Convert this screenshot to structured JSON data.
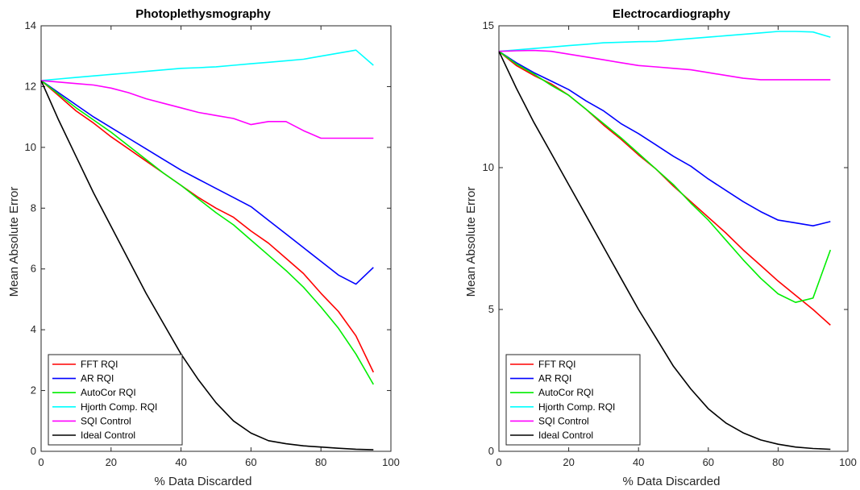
{
  "chart_data": [
    {
      "type": "line",
      "title": "Photoplethysmography",
      "xlabel": "% Data Discarded",
      "ylabel": "Mean Absolute Error",
      "xlim": [
        0,
        100
      ],
      "ylim": [
        0,
        14
      ],
      "xticks": [
        0,
        20,
        40,
        60,
        80,
        100
      ],
      "yticks": [
        0,
        2,
        4,
        6,
        8,
        10,
        12,
        14
      ],
      "legend_position": "bottom-left",
      "grid": false,
      "series": [
        {
          "name": "FFT RQI",
          "color": "#ff0000",
          "x": [
            0,
            5,
            10,
            15,
            20,
            25,
            30,
            35,
            40,
            45,
            50,
            55,
            60,
            65,
            70,
            75,
            80,
            85,
            90,
            95
          ],
          "y": [
            12.2,
            11.7,
            11.2,
            10.8,
            10.35,
            9.95,
            9.55,
            9.15,
            8.75,
            8.35,
            8.0,
            7.7,
            7.25,
            6.85,
            6.35,
            5.85,
            5.2,
            4.6,
            3.8,
            2.6
          ]
        },
        {
          "name": "AR RQI",
          "color": "#0000ff",
          "x": [
            0,
            5,
            10,
            15,
            20,
            25,
            30,
            35,
            40,
            45,
            50,
            55,
            60,
            65,
            70,
            75,
            80,
            85,
            90,
            95
          ],
          "y": [
            12.2,
            11.8,
            11.4,
            11.0,
            10.65,
            10.3,
            9.95,
            9.6,
            9.25,
            8.95,
            8.65,
            8.35,
            8.05,
            7.6,
            7.15,
            6.7,
            6.25,
            5.8,
            5.5,
            6.05
          ]
        },
        {
          "name": "AutoCor RQI",
          "color": "#00ee00",
          "x": [
            0,
            5,
            10,
            15,
            20,
            25,
            30,
            35,
            40,
            45,
            50,
            55,
            60,
            65,
            70,
            75,
            80,
            85,
            90,
            95
          ],
          "y": [
            12.2,
            11.75,
            11.3,
            10.9,
            10.5,
            10.05,
            9.6,
            9.15,
            8.75,
            8.3,
            7.85,
            7.45,
            6.95,
            6.45,
            5.95,
            5.4,
            4.75,
            4.05,
            3.2,
            2.2
          ]
        },
        {
          "name": "Hjorth Comp. RQI",
          "color": "#00ffff",
          "x": [
            0,
            5,
            10,
            15,
            20,
            25,
            30,
            35,
            40,
            45,
            50,
            55,
            60,
            65,
            70,
            75,
            80,
            85,
            90,
            95
          ],
          "y": [
            12.2,
            12.25,
            12.3,
            12.35,
            12.4,
            12.45,
            12.5,
            12.55,
            12.6,
            12.62,
            12.65,
            12.7,
            12.75,
            12.8,
            12.85,
            12.9,
            13.0,
            13.1,
            13.2,
            12.7
          ]
        },
        {
          "name": "SQI Control",
          "color": "#ff00ff",
          "x": [
            0,
            5,
            10,
            15,
            20,
            25,
            30,
            35,
            40,
            45,
            50,
            55,
            60,
            65,
            70,
            75,
            80,
            85,
            90,
            95
          ],
          "y": [
            12.2,
            12.15,
            12.1,
            12.05,
            11.95,
            11.8,
            11.6,
            11.45,
            11.3,
            11.15,
            11.05,
            10.95,
            10.75,
            10.85,
            10.85,
            10.55,
            10.3,
            10.3,
            10.3,
            10.3
          ]
        },
        {
          "name": "Ideal Control",
          "color": "#000000",
          "x": [
            0,
            5,
            10,
            15,
            20,
            25,
            30,
            35,
            40,
            45,
            50,
            55,
            60,
            65,
            70,
            75,
            80,
            85,
            90,
            95
          ],
          "y": [
            12.2,
            10.9,
            9.7,
            8.5,
            7.4,
            6.3,
            5.2,
            4.2,
            3.2,
            2.35,
            1.6,
            1.0,
            0.6,
            0.35,
            0.25,
            0.18,
            0.14,
            0.1,
            0.07,
            0.05
          ]
        }
      ]
    },
    {
      "type": "line",
      "title": "Electrocardiography",
      "xlabel": "% Data Discarded",
      "ylabel": "Mean Absolute Error",
      "xlim": [
        0,
        100
      ],
      "ylim": [
        0,
        15
      ],
      "xticks": [
        0,
        20,
        40,
        60,
        80,
        100
      ],
      "yticks": [
        0,
        5,
        10,
        15
      ],
      "legend_position": "bottom-left",
      "grid": false,
      "series": [
        {
          "name": "FFT RQI",
          "color": "#ff0000",
          "x": [
            0,
            5,
            10,
            15,
            20,
            25,
            30,
            35,
            40,
            45,
            50,
            55,
            60,
            65,
            70,
            75,
            80,
            85,
            90,
            95
          ],
          "y": [
            14.1,
            13.6,
            13.25,
            12.95,
            12.55,
            12.05,
            11.5,
            11.0,
            10.45,
            9.95,
            9.35,
            8.8,
            8.25,
            7.7,
            7.1,
            6.55,
            6.0,
            5.5,
            5.0,
            4.45
          ]
        },
        {
          "name": "AR RQI",
          "color": "#0000ff",
          "x": [
            0,
            5,
            10,
            15,
            20,
            25,
            30,
            35,
            40,
            45,
            50,
            55,
            60,
            65,
            70,
            75,
            80,
            85,
            90,
            95
          ],
          "y": [
            14.1,
            13.7,
            13.35,
            13.05,
            12.75,
            12.35,
            12.0,
            11.55,
            11.2,
            10.8,
            10.4,
            10.05,
            9.6,
            9.2,
            8.8,
            8.45,
            8.15,
            8.05,
            7.95,
            8.1
          ]
        },
        {
          "name": "AutoCor RQI",
          "color": "#00ee00",
          "x": [
            0,
            5,
            10,
            15,
            20,
            25,
            30,
            35,
            40,
            45,
            50,
            55,
            60,
            65,
            70,
            75,
            80,
            85,
            90,
            95
          ],
          "y": [
            14.1,
            13.65,
            13.3,
            12.9,
            12.55,
            12.05,
            11.55,
            11.05,
            10.5,
            9.95,
            9.4,
            8.75,
            8.15,
            7.45,
            6.75,
            6.1,
            5.55,
            5.25,
            5.4,
            7.1
          ]
        },
        {
          "name": "Hjorth Comp. RQI",
          "color": "#00ffff",
          "x": [
            0,
            5,
            10,
            15,
            20,
            25,
            30,
            35,
            40,
            45,
            50,
            55,
            60,
            65,
            70,
            75,
            80,
            85,
            90,
            95
          ],
          "y": [
            14.1,
            14.15,
            14.2,
            14.25,
            14.3,
            14.35,
            14.4,
            14.42,
            14.44,
            14.45,
            14.5,
            14.55,
            14.6,
            14.65,
            14.7,
            14.75,
            14.8,
            14.8,
            14.78,
            14.6
          ]
        },
        {
          "name": "SQI Control",
          "color": "#ff00ff",
          "x": [
            0,
            5,
            10,
            15,
            20,
            25,
            30,
            35,
            40,
            45,
            50,
            55,
            60,
            65,
            70,
            75,
            80,
            85,
            90,
            95
          ],
          "y": [
            14.1,
            14.12,
            14.13,
            14.1,
            14.0,
            13.9,
            13.8,
            13.7,
            13.6,
            13.55,
            13.5,
            13.45,
            13.35,
            13.25,
            13.15,
            13.1,
            13.1,
            13.1,
            13.1,
            13.1
          ]
        },
        {
          "name": "Ideal Control",
          "color": "#000000",
          "x": [
            0,
            5,
            10,
            15,
            20,
            25,
            30,
            35,
            40,
            45,
            50,
            55,
            60,
            65,
            70,
            75,
            80,
            85,
            90,
            95
          ],
          "y": [
            14.1,
            12.8,
            11.6,
            10.5,
            9.4,
            8.3,
            7.2,
            6.1,
            5.0,
            4.0,
            3.0,
            2.2,
            1.5,
            1.0,
            0.65,
            0.4,
            0.25,
            0.15,
            0.1,
            0.07
          ]
        }
      ]
    }
  ]
}
